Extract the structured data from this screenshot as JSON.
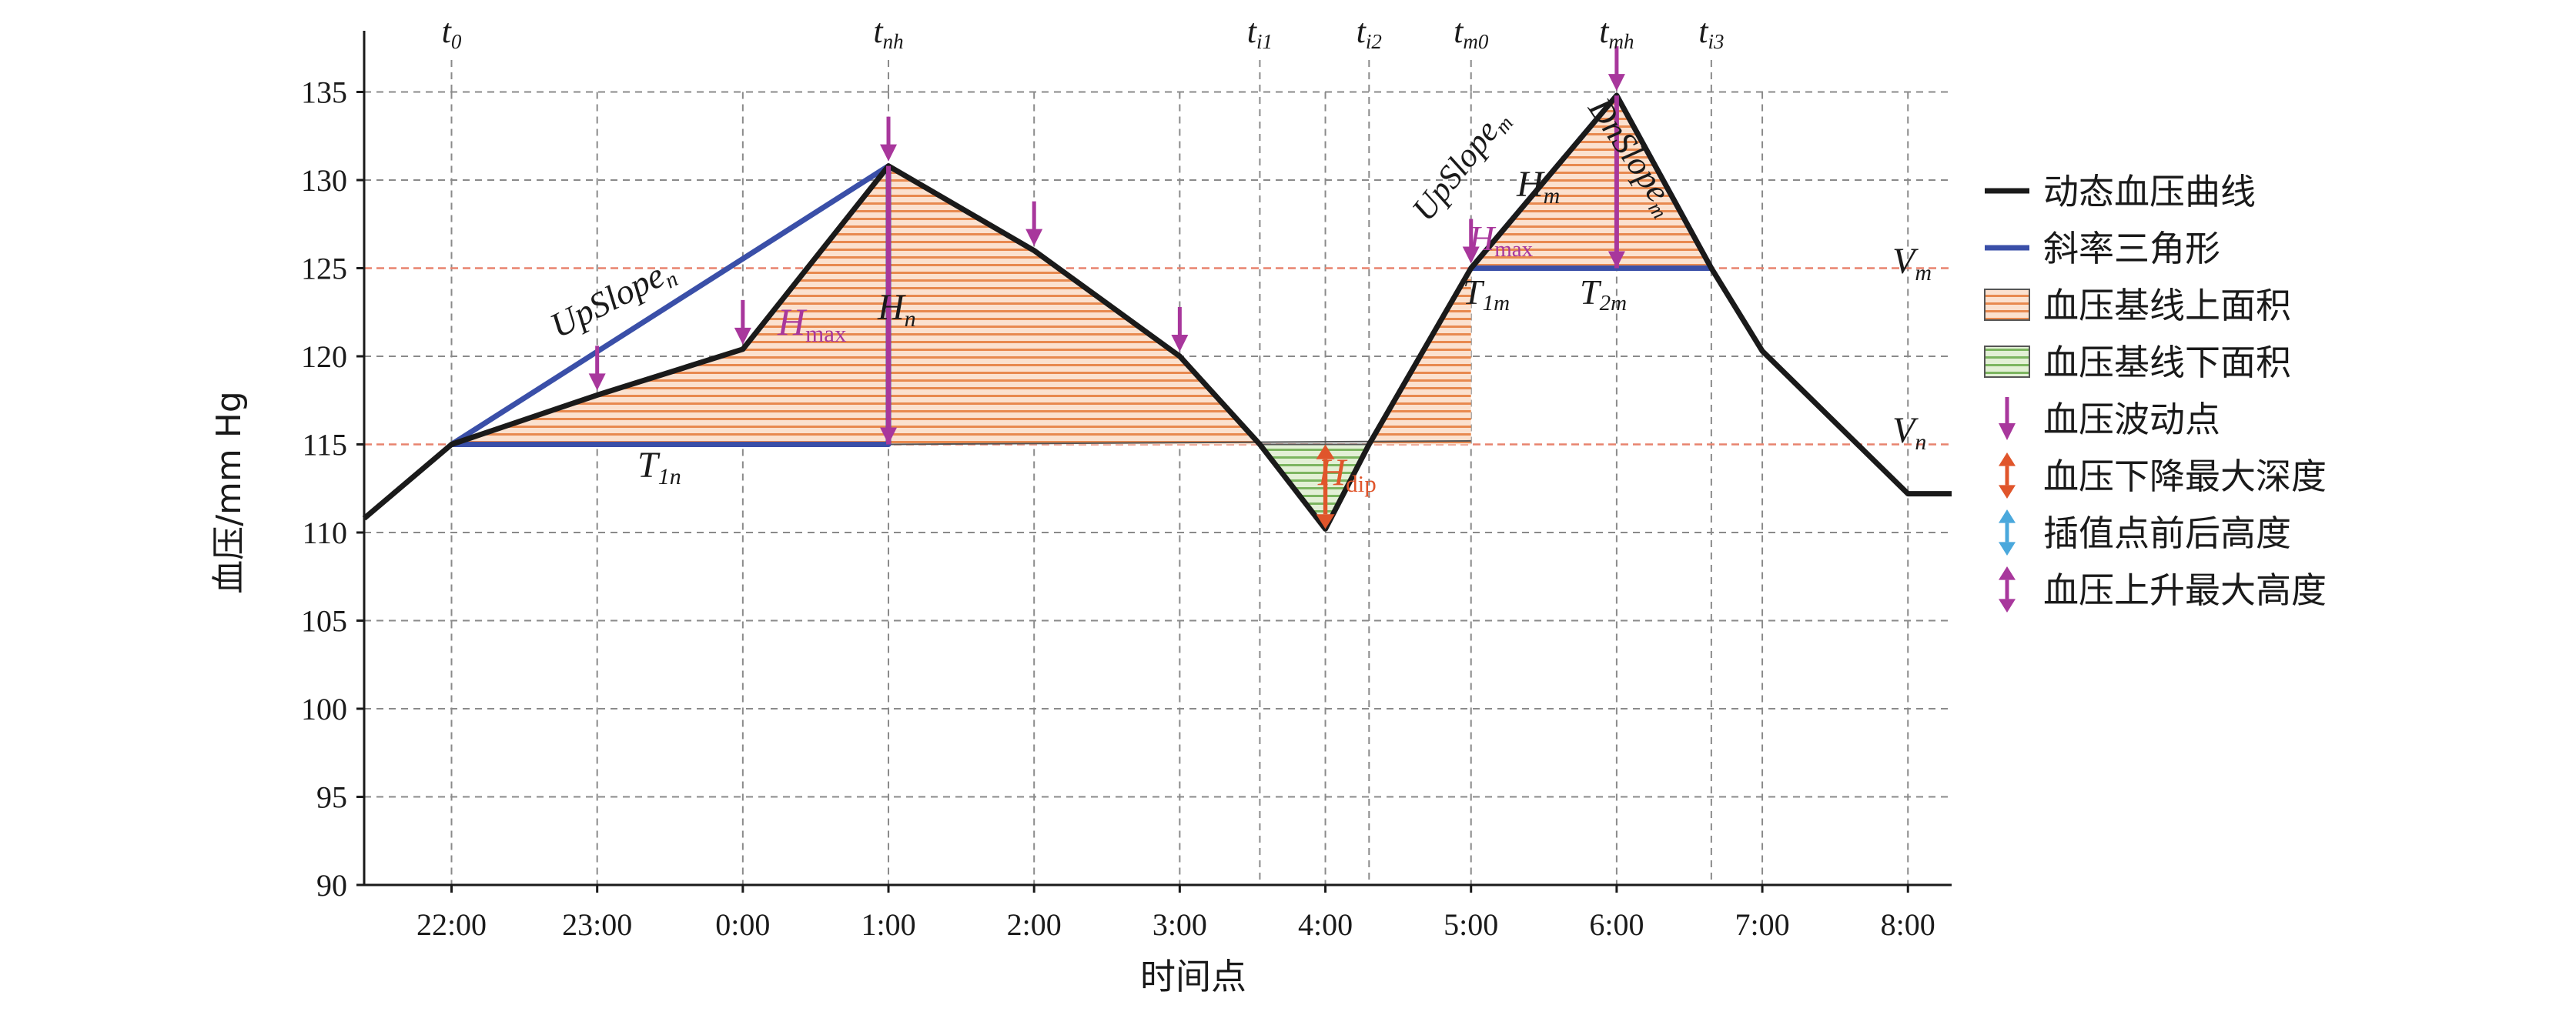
{
  "chart_data": {
    "type": "line",
    "ylabel": "血压/mm Hg",
    "xlabel": "时间点",
    "ylim": [
      90,
      137
    ],
    "xlim": [
      21.4,
      32.3
    ],
    "y_ticks": [
      90,
      95,
      100,
      105,
      110,
      115,
      120,
      125,
      130,
      135
    ],
    "x_ticks": [
      {
        "value": 22,
        "label": "22:00"
      },
      {
        "value": 23,
        "label": "23:00"
      },
      {
        "value": 24,
        "label": "0:00"
      },
      {
        "value": 25,
        "label": "1:00"
      },
      {
        "value": 26,
        "label": "2:00"
      },
      {
        "value": 27,
        "label": "3:00"
      },
      {
        "value": 28,
        "label": "4:00"
      },
      {
        "value": 29,
        "label": "5:00"
      },
      {
        "value": 30,
        "label": "6:00"
      },
      {
        "value": 31,
        "label": "7:00"
      },
      {
        "value": 32,
        "label": "8:00"
      }
    ],
    "grid": true,
    "series": [
      {
        "name": "动态血压曲线",
        "color": "#1a1a1a",
        "x": [
          21.4,
          22.0,
          23.0,
          24.0,
          25.0,
          26.0,
          27.0,
          27.55,
          28.0,
          28.3,
          29.0,
          30.0,
          30.65,
          31.0,
          32.0,
          32.3
        ],
        "y": [
          110.8,
          115.0,
          117.8,
          120.4,
          130.8,
          126.0,
          120.0,
          115.0,
          110.2,
          115.0,
          125.0,
          134.8,
          125.0,
          120.3,
          112.2,
          112.2
        ]
      }
    ],
    "slope_triangles": [
      {
        "color": "#3a4fa8",
        "x": [
          22.0,
          25.0,
          25.0
        ],
        "y": [
          115.0,
          130.8,
          115.0
        ]
      },
      {
        "color": "#3a4fa8",
        "x": [
          29.0,
          30.0,
          30.65
        ],
        "y": [
          125.0,
          134.8,
          125.0
        ]
      }
    ],
    "baselines": [
      {
        "label": "V_m",
        "value": 125,
        "color": "#e8836e"
      },
      {
        "label": "V_n",
        "value": 115,
        "color": "#e8836e"
      }
    ],
    "above_areas": [
      {
        "x": [
          22.0,
          23.0,
          24.0,
          25.0,
          26.0,
          27.0,
          27.55
        ],
        "y": [
          115.0,
          117.8,
          120.4,
          130.8,
          126.0,
          120.0,
          115.0
        ],
        "base": 115
      },
      {
        "x": [
          28.3,
          29.0,
          29.0
        ],
        "y": [
          115.0,
          125.0,
          115.0
        ],
        "base": 115,
        "polygon": true
      },
      {
        "x": [
          29.0,
          30.0,
          30.65
        ],
        "y": [
          125.0,
          134.8,
          125.0
        ],
        "base": 125
      }
    ],
    "below_areas": [
      {
        "x": [
          27.55,
          28.0,
          28.3
        ],
        "y": [
          115.0,
          110.2,
          115.0
        ],
        "base": 115
      }
    ],
    "fluctuation_points": [
      {
        "x": 23.0,
        "y": 117.8
      },
      {
        "x": 24.0,
        "y": 120.4
      },
      {
        "x": 25.0,
        "y": 130.8
      },
      {
        "x": 26.0,
        "y": 126.0
      },
      {
        "x": 27.0,
        "y": 120.0
      },
      {
        "x": 29.0,
        "y": 125.0
      },
      {
        "x": 30.0,
        "y": 134.8
      }
    ],
    "time_markers": [
      {
        "key": "t0",
        "base": "t",
        "sub": "0",
        "x": 22.0
      },
      {
        "key": "tnh",
        "base": "t",
        "sub": "nh",
        "x": 25.0
      },
      {
        "key": "ti1",
        "base": "t",
        "sub": "i1",
        "x": 27.55
      },
      {
        "key": "ti2",
        "base": "t",
        "sub": "i2",
        "x": 28.3
      },
      {
        "key": "tm0",
        "base": "t",
        "sub": "m0",
        "x": 29.0
      },
      {
        "key": "tmh",
        "base": "t",
        "sub": "mh",
        "x": 30.0
      },
      {
        "key": "ti3",
        "base": "t",
        "sub": "i3",
        "x": 30.65
      }
    ],
    "annotations": {
      "upslope_n": {
        "base": "UpSlope",
        "sub": "n"
      },
      "upslope_m": {
        "base": "UpSlope",
        "sub": "m"
      },
      "dnslope_m": {
        "base": "DnSlope",
        "sub": "m"
      },
      "hmax_n": {
        "base": "H",
        "sub": "max"
      },
      "hmax_m": {
        "base": "H",
        "sub": "max"
      },
      "h_n": {
        "base": "H",
        "sub": "n"
      },
      "h_m": {
        "base": "H",
        "sub": "m"
      },
      "h_dip": {
        "base": "H",
        "sub": "dip"
      },
      "t1n": {
        "base": "T",
        "sub": "1n"
      },
      "t1m": {
        "base": "T",
        "sub": "1m"
      },
      "t2m": {
        "base": "T",
        "sub": "2m"
      },
      "vm": {
        "base": "V",
        "sub": "m"
      },
      "vn": {
        "base": "V",
        "sub": "n"
      }
    },
    "legend": {
      "placement": "right",
      "items": [
        {
          "key": "curve",
          "label": "动态血压曲线",
          "symbol": "line",
          "color": "#1a1a1a"
        },
        {
          "key": "triangle",
          "label": "斜率三角形",
          "symbol": "line",
          "color": "#3a4fa8"
        },
        {
          "key": "above",
          "label": "血压基线上面积",
          "symbol": "hatch-orange"
        },
        {
          "key": "below",
          "label": "血压基线下面积",
          "symbol": "hatch-green"
        },
        {
          "key": "fluct",
          "label": "血压波动点",
          "symbol": "arrow-down",
          "color": "#a8379c"
        },
        {
          "key": "dip",
          "label": "血压下降最大深度",
          "symbol": "arrow-double",
          "color": "#e0552b"
        },
        {
          "key": "interp",
          "label": "插值点前后高度",
          "symbol": "arrow-double",
          "color": "#4aa8dc"
        },
        {
          "key": "rise",
          "label": "血压上升最大高度",
          "symbol": "arrow-double",
          "color": "#a8379c"
        }
      ]
    }
  },
  "colors": {
    "curve": "#1a1a1a",
    "triangle": "#3a4fa8",
    "above_hatch": "#e8894f",
    "above_fill": "#fbe1cf",
    "below_hatch": "#7cb560",
    "below_fill": "#e3f0d6",
    "purple": "#a8379c",
    "orange": "#e0552b",
    "blue_light": "#4aa8dc",
    "grid": "#8a8a8a",
    "baseline": "#e8836e"
  }
}
